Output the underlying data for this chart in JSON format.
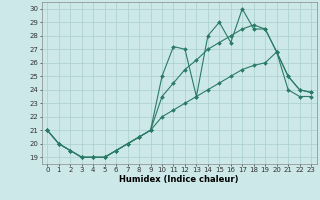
{
  "xlabel": "Humidex (Indice chaleur)",
  "x": [
    0,
    1,
    2,
    3,
    4,
    5,
    6,
    7,
    8,
    9,
    10,
    11,
    12,
    13,
    14,
    15,
    16,
    17,
    18,
    19,
    20,
    21,
    22,
    23
  ],
  "line1": [
    21,
    20,
    19.5,
    19,
    19,
    19,
    19.5,
    20,
    20.5,
    21,
    25,
    27.2,
    27,
    23.5,
    28,
    29,
    27.5,
    30,
    28.5,
    28.5,
    26.8,
    25,
    24,
    23.8
  ],
  "line2": [
    21,
    20,
    19.5,
    19,
    19,
    19,
    19.5,
    20,
    20.5,
    21,
    23.5,
    24.5,
    25.5,
    26.2,
    27,
    27.5,
    28,
    28.5,
    28.8,
    28.5,
    26.8,
    25,
    24,
    23.8
  ],
  "line3": [
    21,
    20,
    19.5,
    19,
    19,
    19,
    19.5,
    20,
    20.5,
    21,
    22,
    22.5,
    23,
    23.5,
    24,
    24.5,
    25,
    25.5,
    25.8,
    26,
    26.8,
    24,
    23.5,
    23.5
  ],
  "line_color": "#2a7a68",
  "bg_color": "#cde8e8",
  "grid_color": "#aacece",
  "ylim": [
    18.5,
    30.5
  ],
  "xlim": [
    -0.5,
    23.5
  ],
  "yticks": [
    19,
    20,
    21,
    22,
    23,
    24,
    25,
    26,
    27,
    28,
    29,
    30
  ],
  "xticks": [
    0,
    1,
    2,
    3,
    4,
    5,
    6,
    7,
    8,
    9,
    10,
    11,
    12,
    13,
    14,
    15,
    16,
    17,
    18,
    19,
    20,
    21,
    22,
    23
  ],
  "marker": "D",
  "markersize": 2.0,
  "linewidth": 0.8,
  "tick_fontsize": 5.0,
  "xlabel_fontsize": 6.0
}
